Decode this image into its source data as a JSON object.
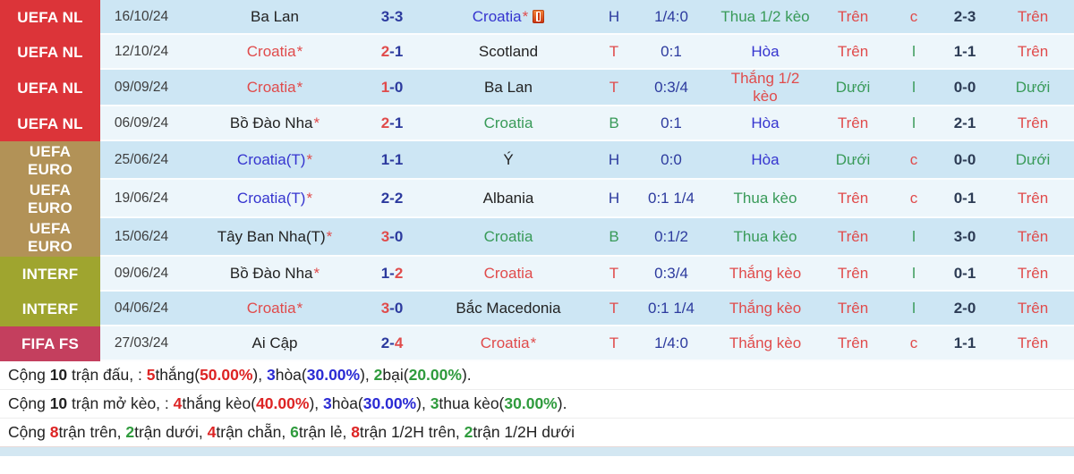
{
  "colors": {
    "red": "#e04b4b",
    "green": "#389a58",
    "blue": "#3534cf",
    "navy": "#2c3a9e",
    "dark": "#2d3c55",
    "black": "#222222",
    "sred": "#dd2424",
    "sgreen": "#2f9b3d",
    "sblue": "#2b2bd4",
    "badge_nl": "#dc3439",
    "badge_euro": "#b29257",
    "badge_interf": "#9fa52f",
    "badge_fifa": "#c43f5e",
    "row_dark": "#cde6f4",
    "row_light": "#edf6fb"
  },
  "table": {
    "rows": [
      {
        "league": "UEFA NL",
        "league_key": "nl",
        "shade": "dark",
        "date": "16/10/24",
        "home": {
          "name": "Ba Lan",
          "star": false,
          "color": "black"
        },
        "score": "3-3",
        "score_hl": "none",
        "away": {
          "name": "Croatia",
          "star": true,
          "color": "blue",
          "icon": true
        },
        "letter": {
          "t": "H",
          "c": "navy"
        },
        "odds": "1/4:0",
        "result": {
          "t": "Thua 1/2 kèo",
          "c": "green"
        },
        "ou_ft": {
          "t": "Trên",
          "c": "red"
        },
        "eo": {
          "t": "c",
          "c": "red"
        },
        "ht_score": "2-3",
        "ou_ht": {
          "t": "Trên",
          "c": "red"
        }
      },
      {
        "league": "UEFA NL",
        "league_key": "nl",
        "shade": "light",
        "date": "12/10/24",
        "home": {
          "name": "Croatia",
          "star": true,
          "color": "red"
        },
        "score": "2-1",
        "score_hl": "home",
        "away": {
          "name": "Scotland",
          "star": false,
          "color": "black"
        },
        "letter": {
          "t": "T",
          "c": "red"
        },
        "odds": "0:1",
        "result": {
          "t": "Hòa",
          "c": "blue"
        },
        "ou_ft": {
          "t": "Trên",
          "c": "red"
        },
        "eo": {
          "t": "l",
          "c": "green"
        },
        "ht_score": "1-1",
        "ou_ht": {
          "t": "Trên",
          "c": "red"
        }
      },
      {
        "league": "UEFA NL",
        "league_key": "nl",
        "shade": "dark",
        "date": "09/09/24",
        "home": {
          "name": "Croatia",
          "star": true,
          "color": "red"
        },
        "score": "1-0",
        "score_hl": "home",
        "away": {
          "name": "Ba Lan",
          "star": false,
          "color": "black"
        },
        "letter": {
          "t": "T",
          "c": "red"
        },
        "odds": "0:3/4",
        "result": {
          "t": "Thắng 1/2 kèo",
          "c": "red"
        },
        "ou_ft": {
          "t": "Dưới",
          "c": "green"
        },
        "eo": {
          "t": "l",
          "c": "green"
        },
        "ht_score": "0-0",
        "ou_ht": {
          "t": "Dưới",
          "c": "green"
        }
      },
      {
        "league": "UEFA NL",
        "league_key": "nl",
        "shade": "light",
        "date": "06/09/24",
        "home": {
          "name": "Bồ Đào Nha",
          "star": true,
          "color": "black"
        },
        "score": "2-1",
        "score_hl": "home",
        "away": {
          "name": "Croatia",
          "star": false,
          "color": "green"
        },
        "letter": {
          "t": "B",
          "c": "green"
        },
        "odds": "0:1",
        "result": {
          "t": "Hòa",
          "c": "blue"
        },
        "ou_ft": {
          "t": "Trên",
          "c": "red"
        },
        "eo": {
          "t": "l",
          "c": "green"
        },
        "ht_score": "2-1",
        "ou_ht": {
          "t": "Trên",
          "c": "red"
        }
      },
      {
        "league": "UEFA EURO",
        "league_key": "euro",
        "shade": "dark",
        "date": "25/06/24",
        "home": {
          "name": "Croatia(T)",
          "star": true,
          "color": "blue"
        },
        "score": "1-1",
        "score_hl": "none",
        "away": {
          "name": "Ý",
          "star": false,
          "color": "black"
        },
        "letter": {
          "t": "H",
          "c": "navy"
        },
        "odds": "0:0",
        "result": {
          "t": "Hòa",
          "c": "blue"
        },
        "ou_ft": {
          "t": "Dưới",
          "c": "green"
        },
        "eo": {
          "t": "c",
          "c": "red"
        },
        "ht_score": "0-0",
        "ou_ht": {
          "t": "Dưới",
          "c": "green"
        }
      },
      {
        "league": "UEFA EURO",
        "league_key": "euro",
        "shade": "light",
        "date": "19/06/24",
        "home": {
          "name": "Croatia(T)",
          "star": true,
          "color": "blue"
        },
        "score": "2-2",
        "score_hl": "none",
        "away": {
          "name": "Albania",
          "star": false,
          "color": "black"
        },
        "letter": {
          "t": "H",
          "c": "navy"
        },
        "odds": "0:1 1/4",
        "result": {
          "t": "Thua kèo",
          "c": "green"
        },
        "ou_ft": {
          "t": "Trên",
          "c": "red"
        },
        "eo": {
          "t": "c",
          "c": "red"
        },
        "ht_score": "0-1",
        "ou_ht": {
          "t": "Trên",
          "c": "red"
        }
      },
      {
        "league": "UEFA EURO",
        "league_key": "euro",
        "shade": "dark",
        "date": "15/06/24",
        "home": {
          "name": "Tây Ban Nha(T)",
          "star": true,
          "color": "black"
        },
        "score": "3-0",
        "score_hl": "home",
        "away": {
          "name": "Croatia",
          "star": false,
          "color": "green"
        },
        "letter": {
          "t": "B",
          "c": "green"
        },
        "odds": "0:1/2",
        "result": {
          "t": "Thua kèo",
          "c": "green"
        },
        "ou_ft": {
          "t": "Trên",
          "c": "red"
        },
        "eo": {
          "t": "l",
          "c": "green"
        },
        "ht_score": "3-0",
        "ou_ht": {
          "t": "Trên",
          "c": "red"
        }
      },
      {
        "league": "INTERF",
        "league_key": "interf",
        "shade": "light",
        "date": "09/06/24",
        "home": {
          "name": "Bồ Đào Nha",
          "star": true,
          "color": "black"
        },
        "score": "1-2",
        "score_hl": "away",
        "away": {
          "name": "Croatia",
          "star": false,
          "color": "red"
        },
        "letter": {
          "t": "T",
          "c": "red"
        },
        "odds": "0:3/4",
        "result": {
          "t": "Thắng kèo",
          "c": "red"
        },
        "ou_ft": {
          "t": "Trên",
          "c": "red"
        },
        "eo": {
          "t": "l",
          "c": "green"
        },
        "ht_score": "0-1",
        "ou_ht": {
          "t": "Trên",
          "c": "red"
        }
      },
      {
        "league": "INTERF",
        "league_key": "interf",
        "shade": "dark",
        "date": "04/06/24",
        "home": {
          "name": "Croatia",
          "star": true,
          "color": "red"
        },
        "score": "3-0",
        "score_hl": "home",
        "away": {
          "name": "Bắc Macedonia",
          "star": false,
          "color": "black"
        },
        "letter": {
          "t": "T",
          "c": "red"
        },
        "odds": "0:1 1/4",
        "result": {
          "t": "Thắng kèo",
          "c": "red"
        },
        "ou_ft": {
          "t": "Trên",
          "c": "red"
        },
        "eo": {
          "t": "l",
          "c": "green"
        },
        "ht_score": "2-0",
        "ou_ht": {
          "t": "Trên",
          "c": "red"
        }
      },
      {
        "league": "FIFA FS",
        "league_key": "fifa",
        "shade": "light",
        "date": "27/03/24",
        "home": {
          "name": "Ai Cập",
          "star": false,
          "color": "black"
        },
        "score": "2-4",
        "score_hl": "away",
        "away": {
          "name": "Croatia",
          "star": true,
          "color": "red"
        },
        "letter": {
          "t": "T",
          "c": "red"
        },
        "odds": "1/4:0",
        "result": {
          "t": "Thắng kèo",
          "c": "red"
        },
        "ou_ft": {
          "t": "Trên",
          "c": "red"
        },
        "eo": {
          "t": "c",
          "c": "red"
        },
        "ht_score": "1-1",
        "ou_ht": {
          "t": "Trên",
          "c": "red"
        }
      }
    ]
  },
  "summary": {
    "lines": [
      {
        "segments": [
          {
            "t": "Cộng ",
            "c": "black"
          },
          {
            "t": "10",
            "c": "black",
            "b": 1
          },
          {
            "t": " trận đấu, : ",
            "c": "black"
          },
          {
            "t": "5",
            "c": "sred",
            "b": 1
          },
          {
            "t": "thắng(",
            "c": "black"
          },
          {
            "t": "50.00%",
            "c": "sred",
            "b": 1
          },
          {
            "t": "), ",
            "c": "black"
          },
          {
            "t": "3",
            "c": "sblue",
            "b": 1
          },
          {
            "t": "hòa(",
            "c": "black"
          },
          {
            "t": "30.00%",
            "c": "sblue",
            "b": 1
          },
          {
            "t": "), ",
            "c": "black"
          },
          {
            "t": "2",
            "c": "sgreen",
            "b": 1
          },
          {
            "t": "bại(",
            "c": "black"
          },
          {
            "t": "20.00%",
            "c": "sgreen",
            "b": 1
          },
          {
            "t": ").",
            "c": "black"
          }
        ]
      },
      {
        "segments": [
          {
            "t": "Cộng ",
            "c": "black"
          },
          {
            "t": "10",
            "c": "black",
            "b": 1
          },
          {
            "t": " trận mở kèo, : ",
            "c": "black"
          },
          {
            "t": "4",
            "c": "sred",
            "b": 1
          },
          {
            "t": "thắng kèo(",
            "c": "black"
          },
          {
            "t": "40.00%",
            "c": "sred",
            "b": 1
          },
          {
            "t": "), ",
            "c": "black"
          },
          {
            "t": "3",
            "c": "sblue",
            "b": 1
          },
          {
            "t": "hòa(",
            "c": "black"
          },
          {
            "t": "30.00%",
            "c": "sblue",
            "b": 1
          },
          {
            "t": "), ",
            "c": "black"
          },
          {
            "t": "3",
            "c": "sgreen",
            "b": 1
          },
          {
            "t": "thua kèo(",
            "c": "black"
          },
          {
            "t": "30.00%",
            "c": "sgreen",
            "b": 1
          },
          {
            "t": ").",
            "c": "black"
          }
        ]
      },
      {
        "segments": [
          {
            "t": "Cộng ",
            "c": "black"
          },
          {
            "t": "8",
            "c": "sred",
            "b": 1
          },
          {
            "t": "trận trên, ",
            "c": "black"
          },
          {
            "t": "2",
            "c": "sgreen",
            "b": 1
          },
          {
            "t": "trận dưới, ",
            "c": "black"
          },
          {
            "t": "4",
            "c": "sred",
            "b": 1
          },
          {
            "t": "trận chẵn, ",
            "c": "black"
          },
          {
            "t": "6",
            "c": "sgreen",
            "b": 1
          },
          {
            "t": "trận lẻ, ",
            "c": "black"
          },
          {
            "t": "8",
            "c": "sred",
            "b": 1
          },
          {
            "t": "trận 1/2H trên, ",
            "c": "black"
          },
          {
            "t": "2",
            "c": "sgreen",
            "b": 1
          },
          {
            "t": "trận 1/2H dưới",
            "c": "black"
          }
        ]
      }
    ]
  }
}
